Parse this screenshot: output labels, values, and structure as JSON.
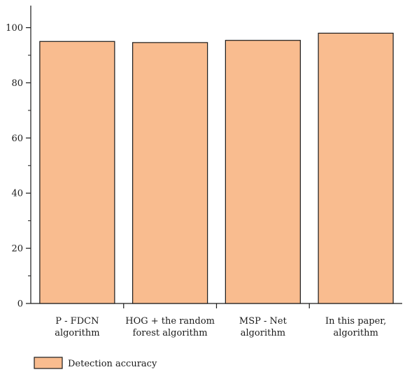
{
  "chart_data": {
    "type": "bar",
    "categories": [
      [
        "P - FDCN",
        "algorithm"
      ],
      [
        "HOG + the random",
        "forest algorithm"
      ],
      [
        "MSP - Net",
        "algorithm"
      ],
      [
        "In this paper,",
        "algorithm"
      ]
    ],
    "series": [
      {
        "name": "Detection accuracy",
        "values": [
          95,
          94.6,
          95.4,
          98
        ]
      }
    ],
    "ylim": [
      0,
      108
    ],
    "yticks": [
      0,
      20,
      40,
      60,
      80,
      100
    ],
    "grid": false,
    "legend_position": "bottom-left",
    "colors": {
      "bar": "#f9bc8f",
      "stroke": "#1a1a1a"
    }
  }
}
